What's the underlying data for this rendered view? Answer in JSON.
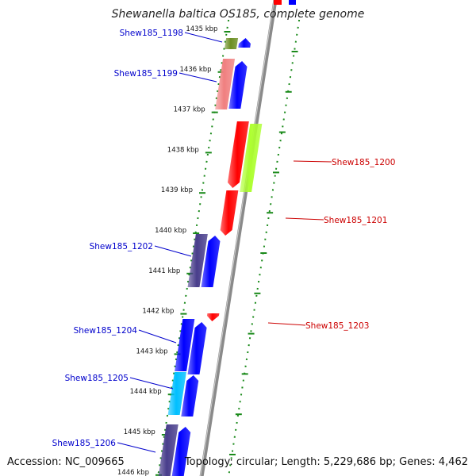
{
  "title": "Shewanella baltica OS185, complete genome",
  "footer": {
    "accession": "Accession: NC_009665",
    "topology": "Topology: circular; Length: 5,229,686 bp; Genes: 4,462"
  },
  "colors": {
    "backbone": "#8a8a8a",
    "scale_dots": "#1a8a1a",
    "forward_label": "#0000cc",
    "reverse_label": "#cc0000"
  },
  "scale": {
    "unit": "kbp",
    "ticks": [
      "1435 kbp",
      "1436 kbp",
      "1437 kbp",
      "1438 kbp",
      "1439 kbp",
      "1440 kbp",
      "1441 kbp",
      "1442 kbp",
      "1443 kbp",
      "1444 kbp",
      "1445 kbp",
      "1446 kbp"
    ]
  },
  "genes": [
    {
      "label": "Shew185_1198",
      "strand": "forward",
      "color": "#0000ff",
      "track_color": "#6b8e23"
    },
    {
      "label": "Shew185_1199",
      "strand": "forward",
      "color": "#0000ff",
      "track_color": "#f08080"
    },
    {
      "label": "Shew185_1200",
      "strand": "reverse",
      "color": "#ff0000",
      "track_color": "#adff2f"
    },
    {
      "label": "Shew185_1201",
      "strand": "reverse",
      "color": "#ff0000",
      "track_color": ""
    },
    {
      "label": "Shew185_1202",
      "strand": "forward",
      "color": "#0000ff",
      "track_color": "#483d8b"
    },
    {
      "label": "Shew185_1203",
      "strand": "reverse",
      "color": "#ff0000",
      "track_color": ""
    },
    {
      "label": "Shew185_1204",
      "strand": "forward",
      "color": "#0000ff",
      "track_color": "#0000ff"
    },
    {
      "label": "Shew185_1205",
      "strand": "forward",
      "color": "#0000ff",
      "track_color": "#00bfff"
    },
    {
      "label": "Shew185_1206",
      "strand": "forward",
      "color": "#0000ff",
      "track_color": "#483d8b"
    }
  ]
}
